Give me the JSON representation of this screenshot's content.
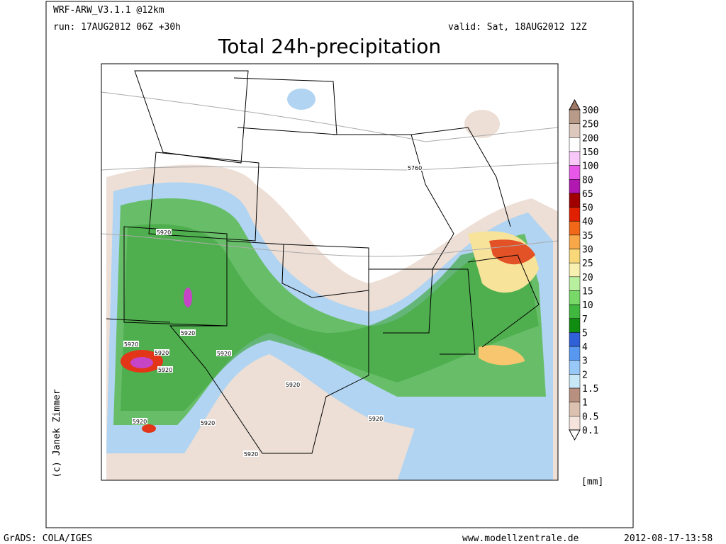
{
  "header": {
    "model": "WRF-ARW_V3.1.1 @12km",
    "run": "run: 17AUG2012 06Z +30h",
    "valid": "valid: Sat, 18AUG2012 12Z",
    "title": "Total 24h-precipitation"
  },
  "legend": {
    "labels": [
      "300",
      "250",
      "200",
      "150",
      "100",
      "80",
      "65",
      "50",
      "40",
      "35",
      "30",
      "25",
      "20",
      "15",
      "10",
      "7",
      "5",
      "4",
      "3",
      "2",
      "1.5",
      "1",
      "0.5",
      "0.1"
    ],
    "unit": "[mm]"
  },
  "map": {
    "contour_labels": [
      "5920",
      "5920",
      "5920",
      "5920",
      "5920",
      "5920",
      "5920",
      "5920",
      "5920",
      "5920",
      "5920",
      "5760"
    ]
  },
  "credit": "(c) Janek Zimmer",
  "footer": {
    "left": "GrADS: COLA/IGES",
    "center": "www.modellzentrale.de",
    "right": "2012-08-17-13:58"
  }
}
